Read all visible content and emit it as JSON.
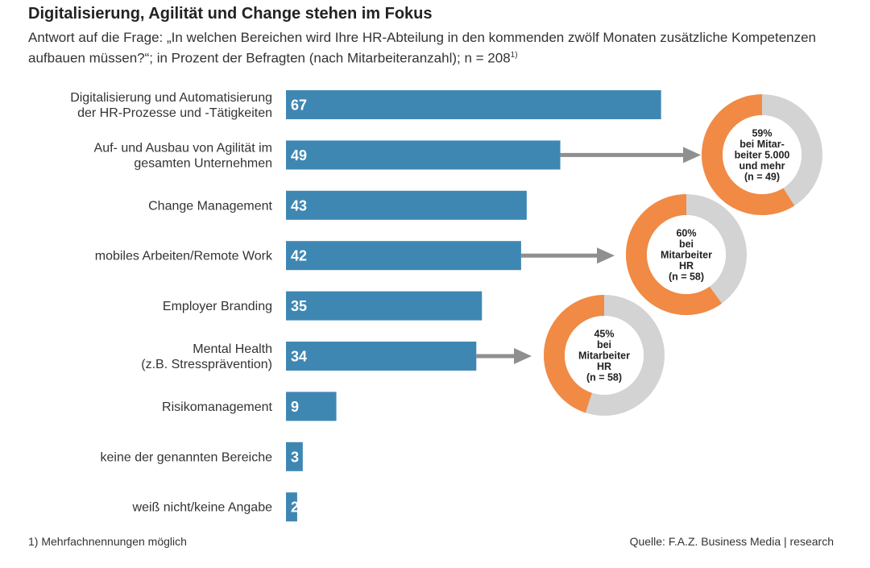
{
  "header": {
    "title": "Digitalisierung, Agilität und Change stehen im Fokus",
    "subtitle": "Antwort auf die Frage: „In welchen Bereichen wird Ihre HR-Abteilung in den kommenden zwölf Monaten zusätzliche Kompetenzen aufbauen müssen?“; in Prozent der Befragten (nach Mitarbeiteranzahl); n = 208",
    "subtitle_note": "1)"
  },
  "colors": {
    "bar": "#3f87b3",
    "donut_highlight": "#f18a45",
    "donut_rest": "#d3d3d3",
    "arrow": "#8f8f8f"
  },
  "chart_data": {
    "type": "bar",
    "orientation": "horizontal",
    "categories": [
      [
        "Digitalisierung und Automatisierung",
        "der HR-Prozesse und -Tätigkeiten"
      ],
      [
        "Auf- und Ausbau von Agilität im",
        "gesamten Unternehmen"
      ],
      [
        "Change Management"
      ],
      [
        "mobiles Arbeiten/Remote Work"
      ],
      [
        "Employer Branding"
      ],
      [
        "Mental Health",
        "(z.B. Stressprävention)"
      ],
      [
        "Risikomanagement"
      ],
      [
        "keine der genannten Bereiche"
      ],
      [
        "weiß nicht/keine Angabe"
      ]
    ],
    "values": [
      67,
      49,
      43,
      42,
      35,
      34,
      9,
      3,
      2
    ],
    "data_labels": [
      "67",
      "49",
      "43",
      "42",
      "35",
      "34",
      "9",
      "3",
      "2"
    ],
    "xlim": [
      0,
      100
    ],
    "callouts": [
      {
        "from_category_index": 1,
        "value": 59,
        "lines": [
          "59%",
          "bei Mitar-",
          "beiter 5.000",
          "und mehr",
          "(n = 49)"
        ]
      },
      {
        "from_category_index": 3,
        "value": 60,
        "lines": [
          "60%",
          "bei",
          "Mitarbeiter",
          "HR",
          "(n = 58)"
        ]
      },
      {
        "from_category_index": 5,
        "value": 45,
        "lines": [
          "45%",
          "bei",
          "Mitarbeiter",
          "HR",
          "(n = 58)"
        ]
      }
    ]
  },
  "footer": {
    "footnote": "1)   Mehrfachnennungen möglich",
    "source": "Quelle: F.A.Z. Business Media | research"
  }
}
